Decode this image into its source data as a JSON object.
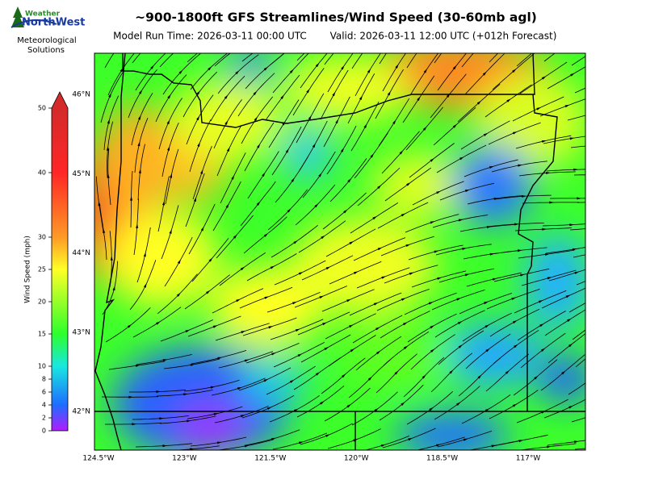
{
  "header": {
    "title": "~900-1800ft GFS Streamlines/Wind Speed (30-60mb agl)",
    "model_run": "Model Run Time: 2026-03-11 00:00 UTC",
    "valid": "Valid: 2026-03-11 12:00 UTC  (+012h Forecast)"
  },
  "logo": {
    "brand_top": "Weather",
    "brand_main": "NorthWest",
    "caption_1": "Meteorological",
    "caption_2": "Solutions"
  },
  "colorbar": {
    "label": "Wind Speed (mph)",
    "range": [
      0,
      50
    ],
    "ticks": [
      0,
      2,
      4,
      6,
      8,
      10,
      15,
      20,
      25,
      30,
      40,
      50
    ]
  },
  "map": {
    "lat_labels": [
      "46°N",
      "45°N",
      "44°N",
      "43°N",
      "42°N"
    ],
    "lon_labels": [
      "124.5°W",
      "123°W",
      "121.5°W",
      "120°W",
      "118.5°W",
      "117°W"
    ]
  }
}
